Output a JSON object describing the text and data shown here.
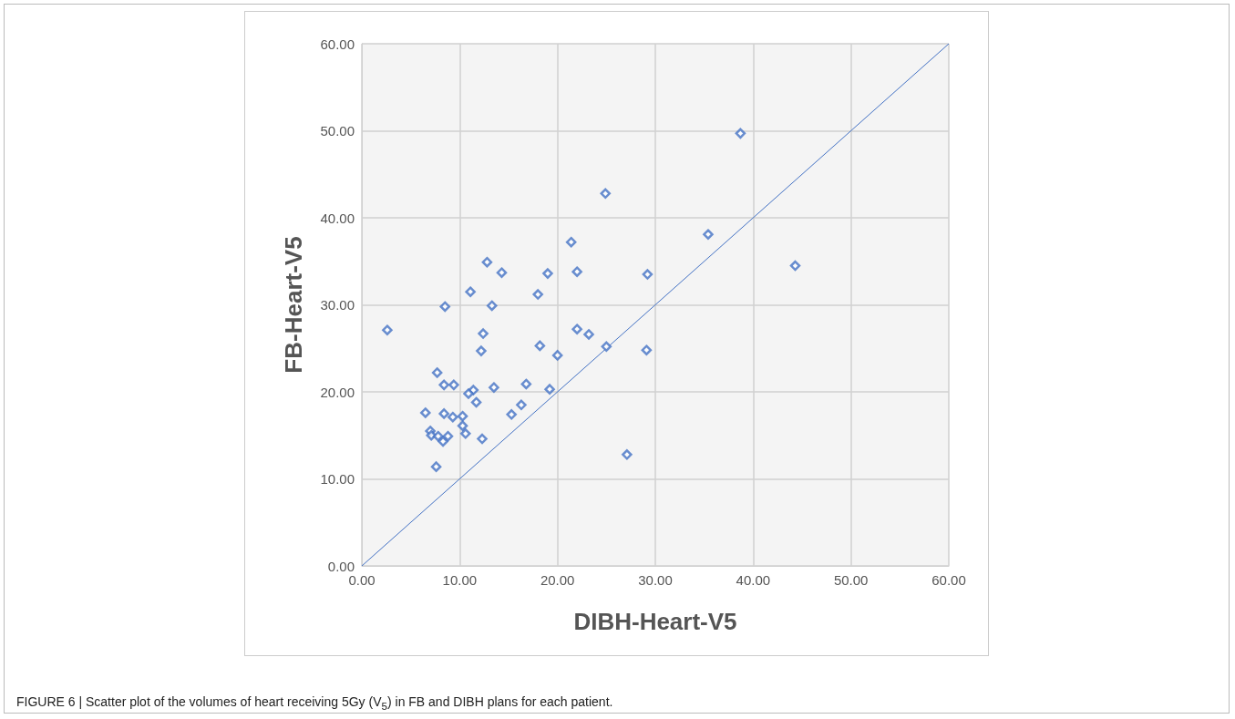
{
  "chart_data": {
    "type": "scatter",
    "xlabel": "DIBH-Heart-V5",
    "ylabel": "FB-Heart-V5",
    "annotations": [
      "FIGURE 6 | Scatter plot of the volumes of heart receiving 5Gy (V$_{5}$) in FB and DIBH plans for each patient."
    ],
    "xlim": [
      0,
      60
    ],
    "ylim": [
      0,
      60
    ],
    "xticks": [
      {
        "value": 0,
        "label": "0.00"
      },
      {
        "value": 10,
        "label": "10.00"
      },
      {
        "value": 20,
        "label": "20.00"
      },
      {
        "value": 30,
        "label": "30.00"
      },
      {
        "value": 40,
        "label": "40.00"
      },
      {
        "value": 50,
        "label": "50.00"
      },
      {
        "value": 60,
        "label": "60.00"
      }
    ],
    "yticks": [
      {
        "value": 0,
        "label": "0.00"
      },
      {
        "value": 10,
        "label": "10.00"
      },
      {
        "value": 20,
        "label": "20.00"
      },
      {
        "value": 30,
        "label": "30.00"
      },
      {
        "value": 40,
        "label": "40.00"
      },
      {
        "value": 50,
        "label": "50.00"
      },
      {
        "value": 60,
        "label": "60.00"
      }
    ],
    "grid": true,
    "marker": "diamond",
    "series": [
      {
        "color": "#4472c4",
        "x": [
          21.4,
          12.8,
          14.3,
          19.0,
          22.0,
          29.2,
          11.1,
          18.0,
          8.5,
          13.3,
          2.6,
          12.4,
          22.0,
          23.2,
          25.0,
          18.2,
          29.1,
          12.2,
          20.0,
          7.7,
          8.4,
          9.4,
          13.5,
          16.8,
          19.2,
          11.4,
          10.9,
          11.7,
          16.3,
          15.3,
          6.5,
          8.4,
          9.3,
          10.3,
          10.3,
          7.0,
          7.1,
          7.8,
          8.3,
          8.8,
          10.6,
          12.3,
          7.6,
          38.7,
          24.9,
          35.4,
          44.3,
          27.1
        ],
        "values": [
          37.2,
          34.9,
          33.7,
          33.6,
          33.8,
          33.5,
          31.5,
          31.2,
          29.8,
          29.9,
          27.1,
          26.7,
          27.2,
          26.6,
          25.2,
          25.3,
          24.8,
          24.7,
          24.2,
          22.2,
          20.8,
          20.8,
          20.5,
          20.9,
          20.3,
          20.2,
          19.8,
          18.8,
          18.5,
          17.4,
          17.6,
          17.5,
          17.1,
          17.2,
          16.1,
          15.5,
          15.0,
          14.9,
          14.3,
          14.9,
          15.2,
          14.6,
          11.4,
          49.7,
          42.8,
          38.1,
          34.5,
          12.8
        ]
      },
      {
        "type": "line",
        "color": "#4472c4",
        "marker": "none",
        "line_style": "solid",
        "x": [
          0,
          60
        ],
        "values": [
          0,
          60
        ]
      }
    ]
  }
}
